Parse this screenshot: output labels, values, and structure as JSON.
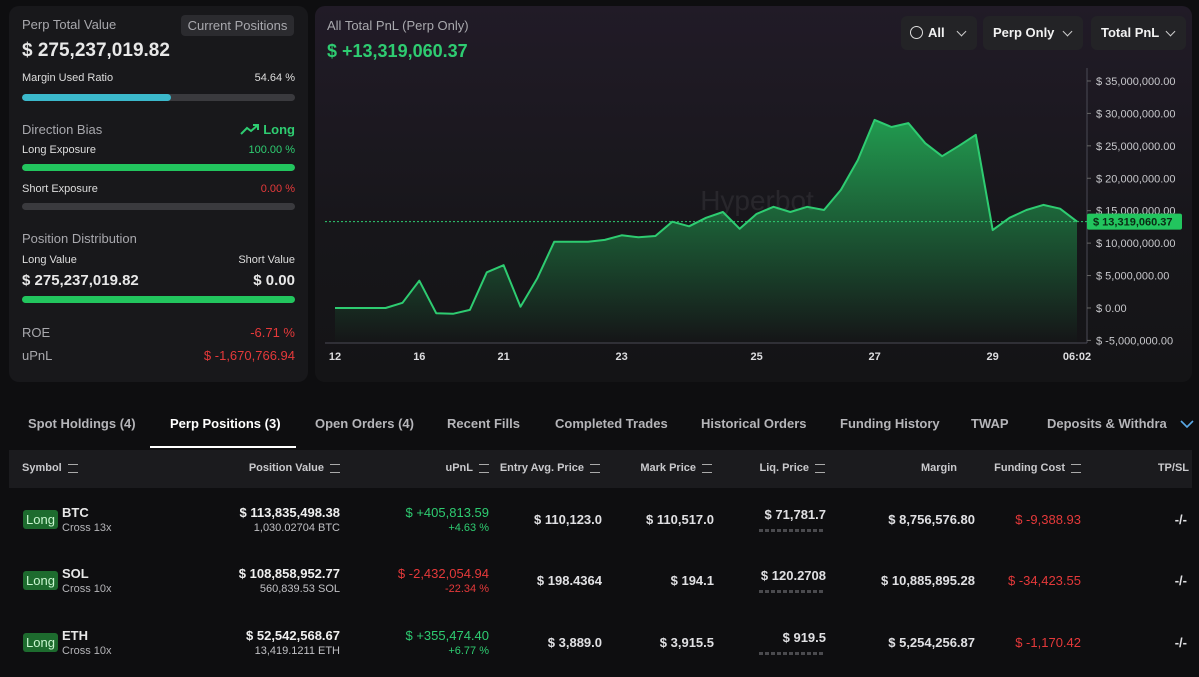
{
  "summary": {
    "title": "Perp Total Value",
    "button": "Current Positions",
    "total": "$ 275,237,019.82",
    "margin": {
      "label": "Margin Used Ratio",
      "value": 54.64,
      "value_label": "54.64 %"
    },
    "bias": {
      "label": "Direction Bias",
      "value": "Long"
    },
    "long_exposure": {
      "label": "Long Exposure",
      "value": 100,
      "value_label": "100.00 %"
    },
    "short_exposure": {
      "label": "Short Exposure",
      "value": 0,
      "value_label": "0.00 %"
    },
    "distribution": {
      "title": "Position Distribution",
      "long_label": "Long Value",
      "short_label": "Short Value",
      "long_value": "$ 275,237,019.82",
      "short_value": "$ 0.00"
    },
    "roe": {
      "label": "ROE",
      "value": "-6.71 %"
    },
    "upnl": {
      "label": "uPnL",
      "value": "$ -1,670,766.94"
    }
  },
  "chart_data": {
    "type": "area",
    "title": "All Total PnL (Perp Only)",
    "subtitle": "$ +13,319,060.37",
    "watermark": "Hyperbot",
    "color": "#2ecc71",
    "values": [
      0,
      0,
      0,
      0,
      800000,
      4200000,
      -800000,
      -900000,
      -300000,
      5500000,
      6600000,
      200000,
      4600000,
      10200000,
      10200000,
      10200000,
      10500000,
      11200000,
      10900000,
      11100000,
      13300000,
      12600000,
      13900000,
      14800000,
      12200000,
      14500000,
      15600000,
      14800000,
      15600000,
      15100000,
      18200000,
      22800000,
      29000000,
      27900000,
      28500000,
      25400000,
      23400000,
      25000000,
      26700000,
      12000000,
      13900000,
      15100000,
      15900000,
      15300000,
      13319060.37
    ],
    "xlim": [
      0,
      44
    ],
    "xticks": [
      {
        "value": 0,
        "label": "12"
      },
      {
        "value": 5,
        "label": "16"
      },
      {
        "value": 10,
        "label": "21"
      },
      {
        "value": 17,
        "label": "23"
      },
      {
        "value": 25,
        "label": "25"
      },
      {
        "value": 32,
        "label": "27"
      },
      {
        "value": 39,
        "label": "29"
      },
      {
        "value": 44,
        "label": "06:02"
      }
    ],
    "ylim": [
      -5400000,
      37000000
    ],
    "yticks": [
      {
        "value": 35000000,
        "label": "$ 35,000,000.00"
      },
      {
        "value": 30000000,
        "label": "$ 30,000,000.00"
      },
      {
        "value": 25000000,
        "label": "$ 25,000,000.00"
      },
      {
        "value": 20000000,
        "label": "$ 20,000,000.00"
      },
      {
        "value": 15000000,
        "label": "$ 15,000,000.00"
      },
      {
        "value": 10000000,
        "label": "$ 10,000,000.00"
      },
      {
        "value": 5000000,
        "label": "$ 5,000,000.00"
      },
      {
        "value": 0,
        "label": "$ 0.00"
      },
      {
        "value": -5000000,
        "label": "$ -5,000,000.00"
      }
    ],
    "current": {
      "value": 13319060.37,
      "label": "$ 13,319,060.37"
    }
  },
  "filters": [
    "All",
    "Perp Only",
    "Total PnL"
  ],
  "tabs": [
    "Spot Holdings (4)",
    "Perp Positions (3)",
    "Open Orders (4)",
    "Recent Fills",
    "Completed Trades",
    "Historical Orders",
    "Funding History",
    "TWAP",
    "Deposits & Withdrawals"
  ],
  "active_tab": 1,
  "table": {
    "headers": [
      "Symbol",
      "Position Value",
      "uPnL",
      "Entry Avg. Price",
      "Mark Price",
      "Liq. Price",
      "Margin",
      "Funding Cost",
      "TP/SL"
    ],
    "rows": [
      [
        "Long",
        "BTC",
        "Cross 13x",
        "$ 113,835,498.38",
        "1,030.02704 BTC",
        "$ +405,813.59",
        "+4.63 %",
        "$ 110,123.0",
        "$ 110,517.0",
        "$ 71,781.7",
        "$ 8,756,576.80",
        "$ -9,388.93",
        "-/-"
      ],
      [
        "Long",
        "SOL",
        "Cross 10x",
        "$ 108,858,952.77",
        "560,839.53 SOL",
        "$ -2,432,054.94",
        "-22.34 %",
        "$ 198.4364",
        "$ 194.1",
        "$ 120.2708",
        "$ 10,885,895.28",
        "$ -34,423.55",
        "-/-"
      ],
      [
        "Long",
        "ETH",
        "Cross 10x",
        "$ 52,542,568.67",
        "13,419.1211 ETH",
        "$ +355,474.40",
        "+6.77 %",
        "$ 3,889.0",
        "$ 3,915.5",
        "$ 919.5",
        "$ 5,254,256.87",
        "$ -1,170.42",
        "-/-"
      ]
    ]
  }
}
